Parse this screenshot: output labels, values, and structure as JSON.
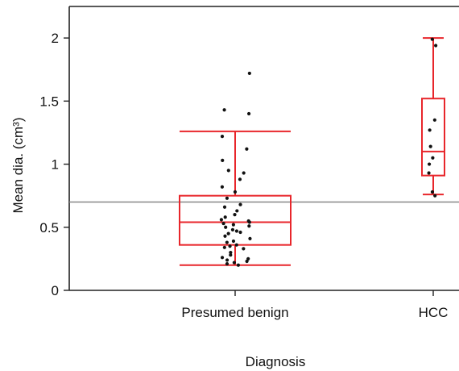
{
  "chart_data": {
    "type": "box",
    "title": "",
    "xlabel": "Diagnosis",
    "ylabel": "Mean dia. (cm³)",
    "ylim": [
      0,
      2.25
    ],
    "yticks": [
      {
        "value": 0,
        "label": "0"
      },
      {
        "value": 0.5,
        "label": "0.5"
      },
      {
        "value": 1,
        "label": "1"
      },
      {
        "value": 1.5,
        "label": "1.5"
      },
      {
        "value": 2,
        "label": "2"
      }
    ],
    "categories": [
      "Presumed benign",
      "HCC"
    ],
    "reference_line": 0.7,
    "colors": {
      "box": "#e8262b",
      "points": "#111111",
      "reference": "#888888",
      "axis": "#222222"
    },
    "boxes": [
      {
        "category": "Presumed benign",
        "whisker_low": 0.2,
        "q1": 0.36,
        "median": 0.54,
        "q3": 0.75,
        "whisker_high": 1.26
      },
      {
        "category": "HCC",
        "whisker_low": 0.76,
        "q1": 0.91,
        "median": 1.1,
        "q3": 1.52,
        "whisker_high": 2.0
      }
    ],
    "points": [
      {
        "category": "Presumed benign",
        "values": [
          1.72,
          1.43,
          1.4,
          1.22,
          1.12,
          1.03,
          0.95,
          0.93,
          0.88,
          0.82,
          0.78,
          0.73,
          0.68,
          0.66,
          0.63,
          0.6,
          0.58,
          0.56,
          0.55,
          0.54,
          0.53,
          0.52,
          0.51,
          0.5,
          0.48,
          0.47,
          0.46,
          0.45,
          0.43,
          0.41,
          0.39,
          0.38,
          0.36,
          0.35,
          0.34,
          0.33,
          0.3,
          0.28,
          0.26,
          0.25,
          0.24,
          0.23,
          0.22,
          0.21,
          0.2
        ]
      },
      {
        "category": "HCC",
        "values": [
          1.99,
          1.94,
          1.35,
          1.27,
          1.14,
          1.05,
          1.0,
          0.93,
          0.78,
          0.75
        ]
      }
    ]
  }
}
